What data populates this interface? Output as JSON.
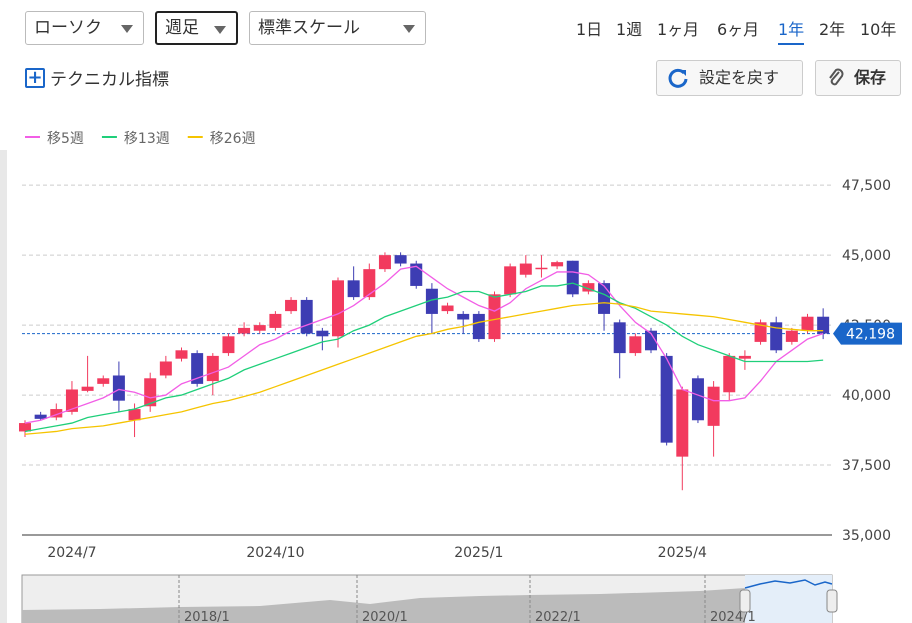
{
  "toolbar": {
    "chart_style": "ローソク",
    "interval": "週足",
    "scale": "標準スケール",
    "periods": [
      "1日",
      "1週",
      "1ヶ月",
      "6ヶ月",
      "1年",
      "2年",
      "10年"
    ],
    "active_period": "1年",
    "technical": "テクニカル指標",
    "reset": "設定を戻す",
    "save": "保存"
  },
  "chart_data": {
    "type": "candlestick",
    "categories": [
      null,
      null,
      null,
      "2024/7",
      null,
      null,
      null,
      null,
      null,
      null,
      null,
      null,
      null,
      null,
      null,
      null,
      "2024/10",
      null,
      null,
      null,
      null,
      null,
      null,
      null,
      null,
      null,
      null,
      null,
      null,
      "2025/1",
      null,
      null,
      null,
      null,
      null,
      null,
      null,
      null,
      null,
      null,
      null,
      null,
      "2025/4",
      null,
      null,
      null,
      null,
      null,
      null,
      null,
      null,
      null
    ],
    "open": [
      38700,
      39300,
      39200,
      39400,
      40150,
      40400,
      40700,
      39100,
      39600,
      40700,
      41300,
      41500,
      40500,
      41500,
      42200,
      42300,
      42400,
      43000,
      43400,
      42300,
      42100,
      44100,
      43500,
      44500,
      45000,
      44700,
      43800,
      43000,
      42900,
      42900,
      42000,
      43600,
      44300,
      44500,
      44600,
      44800,
      43700,
      44000,
      42600,
      41500,
      42300,
      41400,
      37800,
      40600,
      38900,
      40100,
      41300,
      41900,
      42600,
      41900,
      42300,
      42800
    ],
    "high": [
      39100,
      39400,
      39700,
      40500,
      41400,
      40700,
      41200,
      39700,
      40800,
      41400,
      41700,
      41600,
      41500,
      42200,
      42600,
      42600,
      43000,
      43500,
      43500,
      42400,
      44200,
      44600,
      44700,
      45100,
      45100,
      44800,
      44000,
      43300,
      43000,
      43000,
      43700,
      44700,
      45000,
      45000,
      44800,
      44800,
      44100,
      44100,
      42700,
      42200,
      42400,
      41500,
      40300,
      40700,
      40500,
      41500,
      41600,
      42700,
      42800,
      42400,
      42900,
      43100
    ],
    "low": [
      38500,
      39100,
      39100,
      39300,
      40100,
      40300,
      39400,
      38500,
      39400,
      40600,
      41200,
      40300,
      40000,
      41400,
      42100,
      42200,
      42300,
      42900,
      42100,
      41600,
      41700,
      43400,
      43400,
      44400,
      44600,
      43800,
      42200,
      42900,
      42200,
      41900,
      41900,
      43500,
      44200,
      44200,
      44500,
      43500,
      43600,
      42300,
      40600,
      41400,
      41500,
      38200,
      36600,
      39000,
      37800,
      39800,
      40900,
      41800,
      41500,
      41800,
      42200,
      42000
    ],
    "close": [
      39000,
      39150,
      39500,
      40200,
      40300,
      40600,
      39800,
      39500,
      40600,
      41200,
      41600,
      40400,
      41400,
      42100,
      42400,
      42500,
      42900,
      43400,
      42200,
      42100,
      44100,
      43500,
      44500,
      45000,
      44700,
      43900,
      42900,
      43200,
      42700,
      42000,
      43600,
      44600,
      44700,
      44550,
      44750,
      43600,
      44000,
      42900,
      41500,
      42100,
      41600,
      38300,
      40200,
      39100,
      40300,
      41400,
      41400,
      42600,
      41600,
      42300,
      42800,
      42198
    ],
    "up_color": "#f23a5e",
    "down_color": "#3d3db3",
    "series": [
      {
        "name": "移5週",
        "color": "#f25ee6",
        "values": [
          39000,
          39100,
          39300,
          39500,
          39700,
          39900,
          40200,
          40100,
          39900,
          40000,
          40400,
          40600,
          40800,
          41000,
          41400,
          41800,
          42000,
          42300,
          42500,
          42700,
          42900,
          43200,
          43600,
          44000,
          44500,
          44600,
          44200,
          43800,
          43500,
          43200,
          43000,
          43300,
          43800,
          44100,
          44400,
          44400,
          44300,
          43900,
          43200,
          42600,
          42200,
          41300,
          40200,
          40000,
          39800,
          39800,
          39900,
          40500,
          41200,
          41600,
          42000,
          42200
        ]
      },
      {
        "name": "移13週",
        "color": "#1fcf7a",
        "values": [
          38700,
          38800,
          38900,
          39000,
          39200,
          39300,
          39400,
          39500,
          39700,
          39900,
          40000,
          40200,
          40400,
          40600,
          40900,
          41100,
          41300,
          41500,
          41700,
          41900,
          42000,
          42300,
          42500,
          42800,
          43000,
          43200,
          43400,
          43500,
          43700,
          43700,
          43500,
          43600,
          43700,
          43900,
          43900,
          44000,
          43800,
          43600,
          43300,
          43100,
          42800,
          42500,
          42100,
          41800,
          41600,
          41400,
          41200,
          41200,
          41200,
          41200,
          41200,
          41250
        ]
      },
      {
        "name": "移26週",
        "color": "#f5c400",
        "values": [
          38600,
          38650,
          38700,
          38800,
          38850,
          38900,
          39000,
          39100,
          39200,
          39300,
          39400,
          39550,
          39700,
          39800,
          39950,
          40100,
          40300,
          40500,
          40700,
          40900,
          41100,
          41300,
          41500,
          41700,
          41900,
          42100,
          42200,
          42350,
          42450,
          42600,
          42700,
          42800,
          42900,
          43000,
          43100,
          43200,
          43250,
          43300,
          43250,
          43150,
          43000,
          42950,
          42900,
          42850,
          42800,
          42700,
          42600,
          42500,
          42400,
          42350,
          42300,
          42300
        ]
      }
    ],
    "ylim": [
      35000,
      48400
    ],
    "yticks": [
      {
        "value": 35000,
        "label": "35,000"
      },
      {
        "value": 37500,
        "label": "37,500"
      },
      {
        "value": 40000,
        "label": "40,000"
      },
      {
        "value": 42500,
        "label": "42,500"
      },
      {
        "value": 45000,
        "label": "45,000"
      },
      {
        "value": 47500,
        "label": "47,500"
      }
    ],
    "grid": true,
    "price_line": {
      "value": 42198,
      "label": "42,198",
      "color": "#1a66c9"
    }
  },
  "navigator": {
    "labels": [
      "2018/1",
      "2020/1",
      "2022/1",
      "2024/1"
    ]
  }
}
